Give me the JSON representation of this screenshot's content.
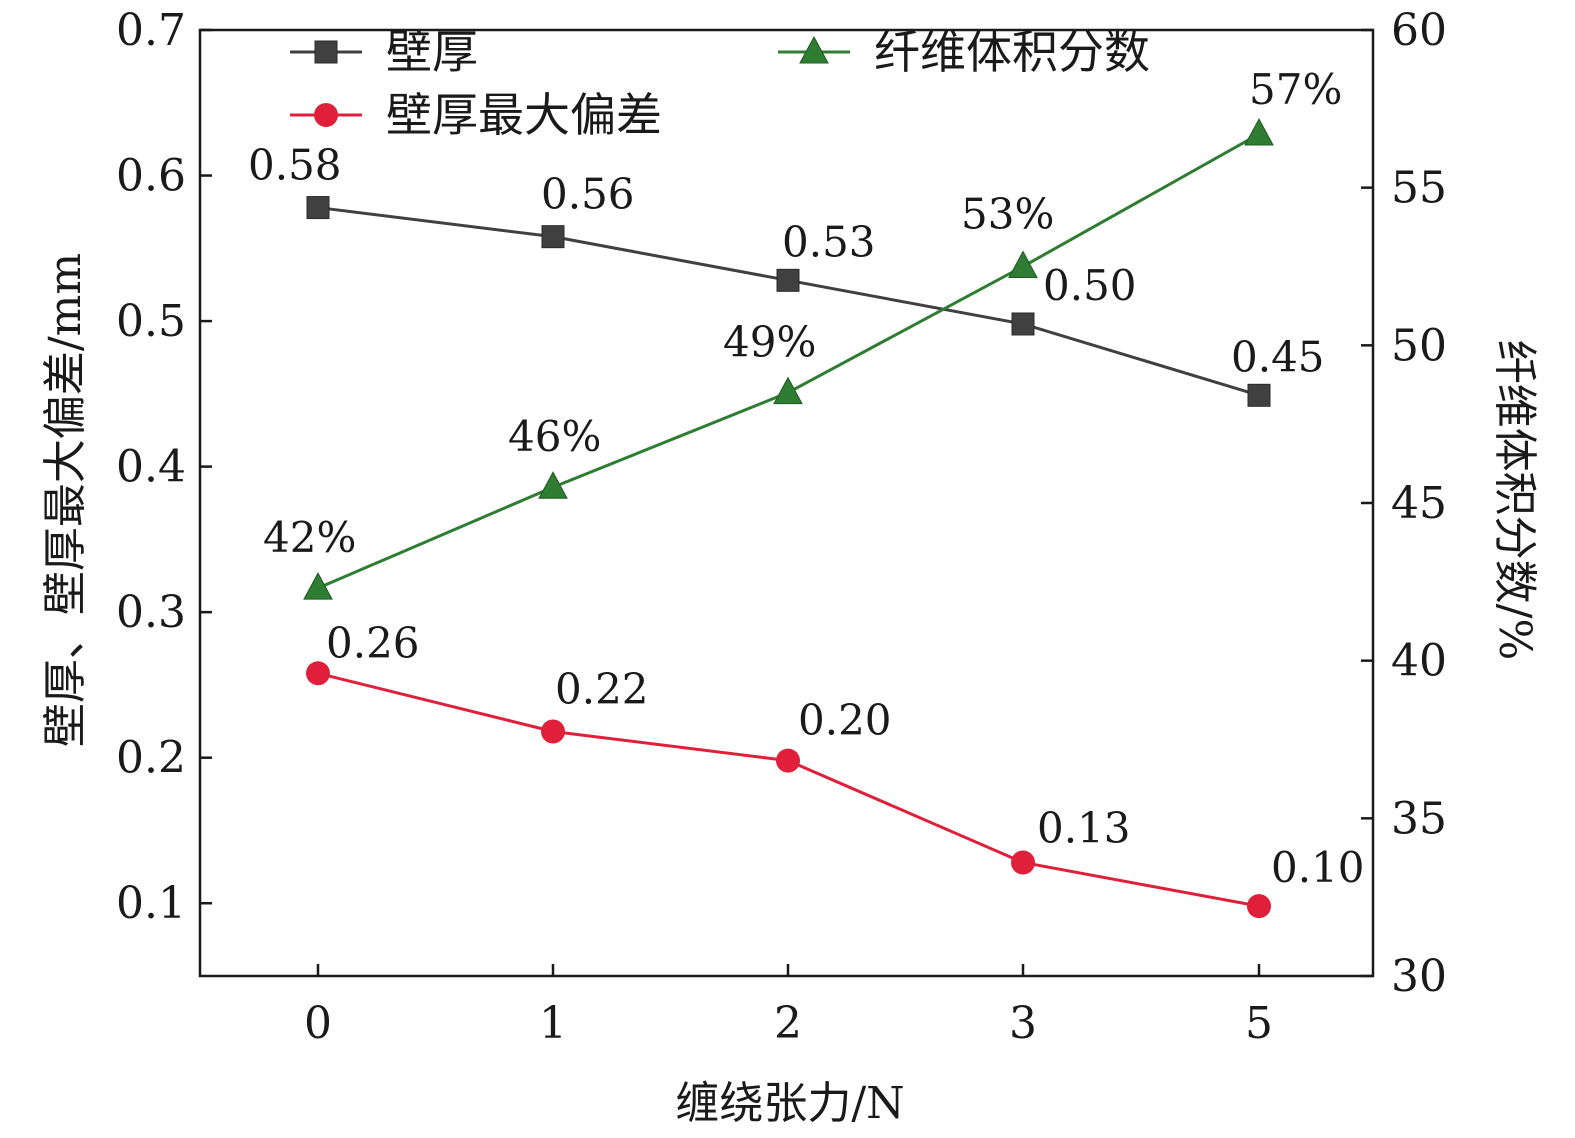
{
  "chart_data": {
    "type": "line",
    "xlabel": "缠绕张力/N",
    "ylabel_left": "壁厚、壁厚最大偏差/mm",
    "ylabel_right": "纤维体积分数/%",
    "categories": [
      "0",
      "1",
      "2",
      "3",
      "5"
    ],
    "ylim_left": [
      0.05,
      0.7
    ],
    "ylim_right": [
      30,
      60
    ],
    "yticks_left": [
      "0.1",
      "0.2",
      "0.3",
      "0.4",
      "0.5",
      "0.6",
      "0.7"
    ],
    "yticks_right": [
      "30",
      "35",
      "40",
      "45",
      "50",
      "55",
      "60"
    ],
    "grid": false,
    "legend_position": "top",
    "series": [
      {
        "name": "壁厚",
        "axis": "left",
        "color": "#404040",
        "marker": "square",
        "values": [
          0.578,
          0.558,
          0.528,
          0.498,
          0.449
        ],
        "labels": [
          "0.58",
          "0.56",
          "0.53",
          "0.50",
          "0.45"
        ]
      },
      {
        "name": "纤维体积分数",
        "axis": "right",
        "color": "#2e7d32",
        "marker": "triangle",
        "values": [
          42.3,
          45.5,
          48.5,
          52.5,
          56.7
        ],
        "labels": [
          "42%",
          "46%",
          "49%",
          "53%",
          "57%"
        ]
      },
      {
        "name": "壁厚最大偏差",
        "axis": "left",
        "color": "#e0203a",
        "marker": "circle",
        "values": [
          0.258,
          0.218,
          0.198,
          0.128,
          0.098
        ],
        "labels": [
          "0.26",
          "0.22",
          "0.20",
          "0.13",
          "0.10"
        ]
      }
    ]
  }
}
